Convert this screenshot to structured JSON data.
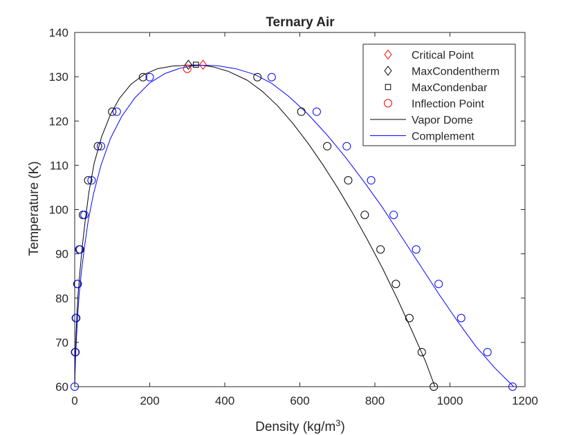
{
  "chart_data": {
    "type": "scatter",
    "title": "Ternary Air",
    "xlabel": "Density (kg/m",
    "xlabel_sup": "3",
    "xlabel_end": ")",
    "ylabel": "Temperature (K)",
    "xlim": [
      0,
      1200
    ],
    "ylim": [
      60,
      140
    ],
    "xticks": [
      0,
      200,
      400,
      600,
      800,
      1000,
      1200
    ],
    "yticks": [
      60,
      70,
      80,
      90,
      100,
      110,
      120,
      130,
      140
    ],
    "grid": false,
    "legend_position": "top-right",
    "colors": {
      "black": "#000000",
      "blue": "#0000ff",
      "red": "#ff0000",
      "axis": "#262626"
    },
    "series": [
      {
        "name": "Vapor Dome",
        "kind": "line",
        "color": "#000000",
        "x": [
          0,
          1,
          2,
          3.5,
          6,
          9,
          14,
          20,
          28,
          38,
          52,
          72,
          96,
          120,
          150,
          185,
          220,
          260,
          300,
          320,
          340,
          370,
          410,
          460,
          500,
          540,
          580,
          620,
          660,
          700,
          740,
          780,
          820,
          860,
          900,
          935,
          960
        ],
        "y": [
          60,
          64,
          68,
          72,
          76.5,
          81,
          86,
          91.5,
          97.5,
          104,
          110.5,
          116.5,
          121.6,
          125.2,
          128.3,
          130.5,
          131.8,
          132.4,
          132.6,
          132.65,
          132.6,
          132.2,
          131.2,
          129.2,
          126.7,
          123.5,
          119.6,
          115.2,
          110.3,
          105,
          99.3,
          93.2,
          86.8,
          79.8,
          72.4,
          65.7,
          60
        ]
      },
      {
        "name": "Complement",
        "kind": "line",
        "color": "#0000ff",
        "x": [
          0,
          1,
          2.5,
          5,
          8,
          12,
          18,
          26,
          36,
          50,
          70,
          95,
          125,
          160,
          200,
          240,
          280,
          310,
          340,
          380,
          430,
          480,
          525,
          570,
          620,
          670,
          720,
          770,
          820,
          870,
          920,
          970,
          1020,
          1070,
          1120,
          1170
        ],
        "y": [
          60,
          63,
          67,
          71.5,
          76,
          81,
          86,
          91.5,
          97.5,
          103.5,
          110,
          116,
          121,
          125.2,
          128.6,
          130.7,
          131.9,
          132.4,
          132.6,
          132.5,
          131.8,
          130.5,
          128.5,
          125.6,
          121.7,
          117.1,
          112,
          106.4,
          100.5,
          94,
          87.5,
          81,
          74.8,
          69,
          64.2,
          60
        ]
      },
      {
        "name": "Vapor Dome points",
        "kind": "markers",
        "marker": "circle",
        "color": "#000000",
        "x": [
          2,
          4,
          8,
          14,
          22,
          36,
          62,
          100,
          182,
          487,
          604,
          673,
          729,
          773,
          815,
          856,
          892,
          925,
          957
        ],
        "y": [
          67.8,
          75.5,
          83.2,
          91,
          98.8,
          106.6,
          114.3,
          122.1,
          129.9,
          129.9,
          122.1,
          114.3,
          106.6,
          98.8,
          91,
          83.2,
          75.5,
          67.8,
          60
        ]
      },
      {
        "name": "Complement points",
        "kind": "markers",
        "marker": "circle",
        "color": "#0000ff",
        "x": [
          0,
          1,
          3,
          7,
          12,
          26,
          45,
          70,
          112,
          200,
          525,
          645,
          725,
          790,
          850,
          910,
          970,
          1030,
          1100,
          1167
        ],
        "y": [
          60,
          67.8,
          75.5,
          83.2,
          91,
          98.8,
          106.6,
          114.3,
          122.1,
          129.9,
          129.9,
          122.1,
          114.3,
          106.6,
          98.8,
          91,
          83.2,
          75.5,
          67.8,
          60
        ]
      },
      {
        "name": "Critical Point",
        "kind": "markers",
        "marker": "diamond",
        "color": "#ff0000",
        "x": [
          342
        ],
        "y": [
          132.7
        ]
      },
      {
        "name": "MaxCondentherm",
        "kind": "markers",
        "marker": "diamond",
        "color": "#000000",
        "x": [
          303
        ],
        "y": [
          132.7
        ]
      },
      {
        "name": "MaxCondenbar",
        "kind": "markers",
        "marker": "square",
        "color": "#000000",
        "x": [
          323
        ],
        "y": [
          132.7
        ]
      },
      {
        "name": "Inflection Point",
        "kind": "markers",
        "marker": "circle",
        "color": "#ff0000",
        "x": [
          300
        ],
        "y": [
          131.8
        ]
      }
    ],
    "legend": [
      {
        "label": "Critical Point",
        "marker": "diamond",
        "color": "#ff0000"
      },
      {
        "label": "MaxCondentherm",
        "marker": "diamond",
        "color": "#000000"
      },
      {
        "label": "MaxCondenbar",
        "marker": "square",
        "color": "#000000"
      },
      {
        "label": "Inflection Point",
        "marker": "circle",
        "color": "#ff0000"
      },
      {
        "label": "Vapor Dome",
        "marker": "line",
        "color": "#000000"
      },
      {
        "label": "Complement",
        "marker": "line",
        "color": "#0000ff"
      }
    ]
  }
}
